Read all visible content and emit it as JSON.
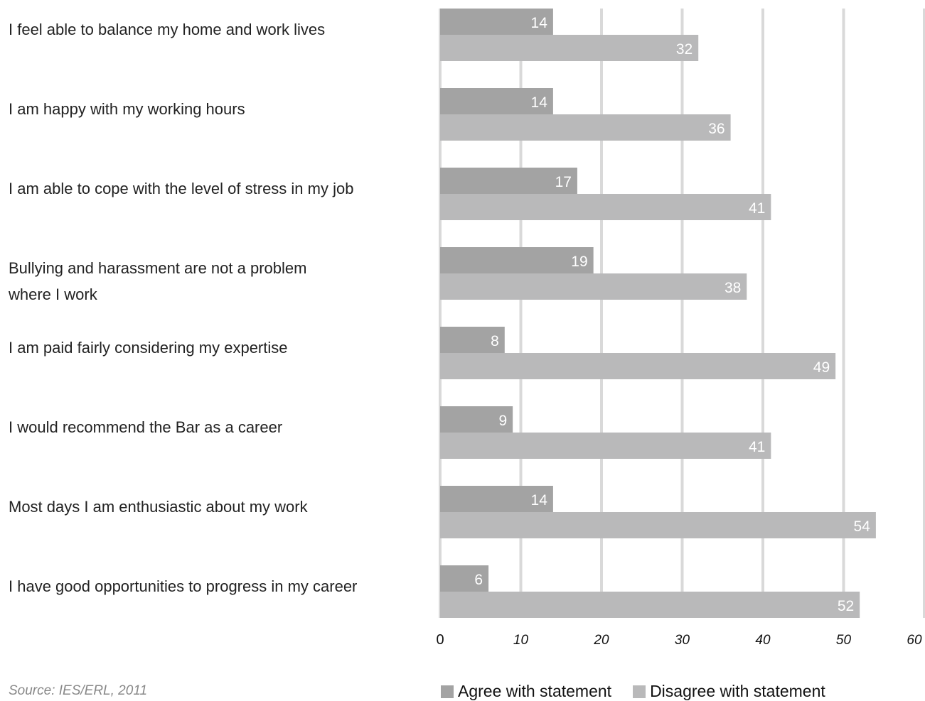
{
  "chart_data": {
    "type": "bar",
    "orientation": "horizontal",
    "categories": [
      "I feel able to balance my home and work lives",
      "I am happy with my working hours",
      "I am able to cope with the level of stress in my job",
      "Bullying and harassment are not a problem where I work",
      "I am paid fairly considering my expertise",
      "I would recommend the Bar as a career",
      "Most days I am enthusiastic about my work",
      "I have good opportunities to progress in my career"
    ],
    "series": [
      {
        "name": "Agree with statement",
        "values": [
          14,
          14,
          17,
          19,
          8,
          9,
          14,
          6
        ],
        "color": "#a3a3a3"
      },
      {
        "name": "Disagree with statement",
        "values": [
          32,
          36,
          41,
          38,
          49,
          41,
          54,
          52
        ],
        "color": "#b9b9ba"
      }
    ],
    "xlim": [
      0,
      60
    ],
    "xticks": [
      "0",
      "10",
      "20",
      "30",
      "40",
      "50",
      "60"
    ],
    "grid": true,
    "legend": "bottom",
    "source": "Source: IES/ERL, 2011"
  }
}
